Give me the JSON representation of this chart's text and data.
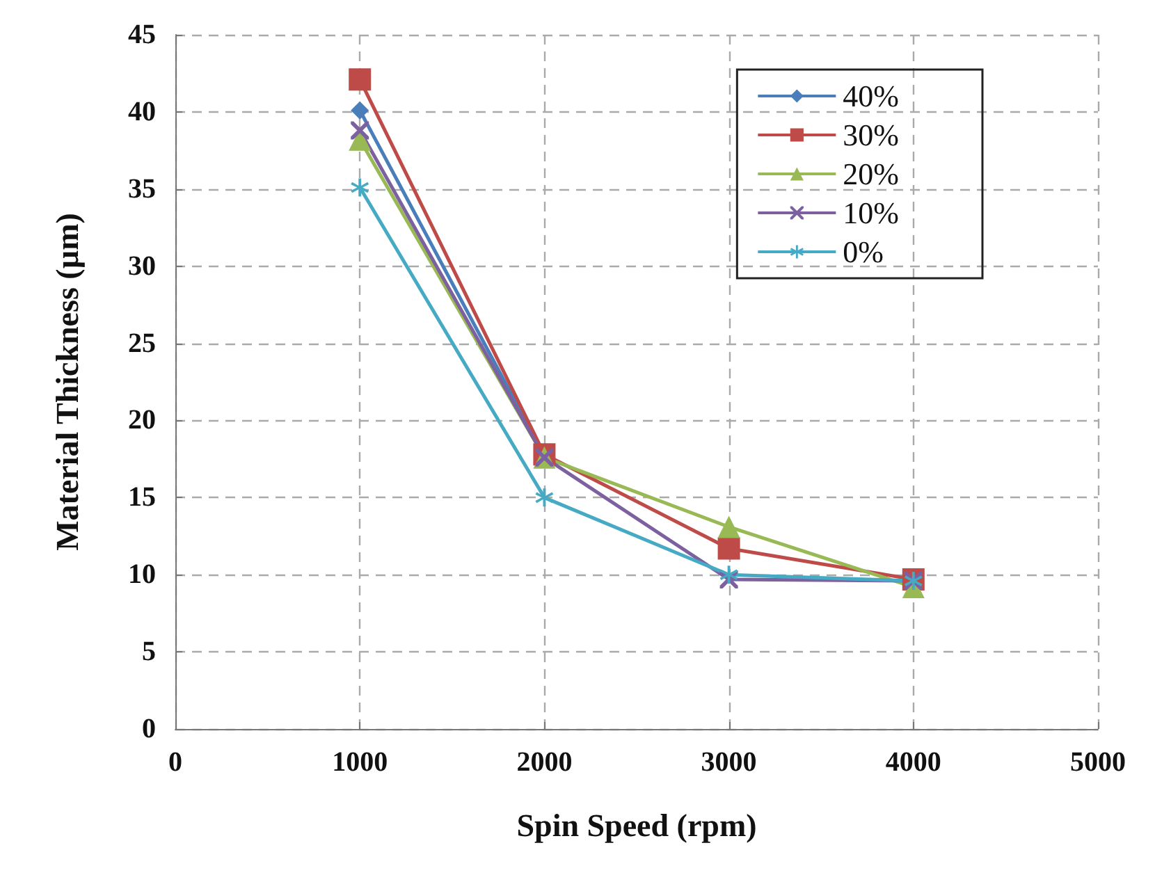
{
  "chart_data": {
    "type": "line",
    "xlabel": "Spin Speed (rpm)",
    "ylabel": "Material Thickness (µm)",
    "x": [
      1000,
      2000,
      3000,
      4000
    ],
    "series": [
      {
        "name": "40%",
        "color": "#4a7ebb",
        "marker": "diamond",
        "values": [
          40.1,
          17.7,
          null,
          null
        ]
      },
      {
        "name": "30%",
        "color": "#be4b48",
        "marker": "square",
        "values": [
          42.1,
          17.8,
          11.7,
          9.7
        ]
      },
      {
        "name": "20%",
        "color": "#98b954",
        "marker": "triangle",
        "values": [
          38.2,
          17.6,
          13.1,
          9.2
        ]
      },
      {
        "name": "10%",
        "color": "#7d60a0",
        "marker": "cross",
        "values": [
          38.8,
          17.6,
          9.7,
          9.6
        ]
      },
      {
        "name": "0%",
        "color": "#46aac5",
        "marker": "star",
        "values": [
          35.1,
          15.0,
          10.0,
          9.6
        ]
      }
    ],
    "xlim": [
      0,
      5000
    ],
    "xticks": [
      0,
      1000,
      2000,
      3000,
      4000,
      5000
    ],
    "ylim": [
      0,
      45
    ],
    "yticks": [
      0,
      5,
      10,
      15,
      20,
      25,
      30,
      35,
      40,
      45
    ],
    "grid": true,
    "legend": "top right",
    "line_style": "solid"
  }
}
